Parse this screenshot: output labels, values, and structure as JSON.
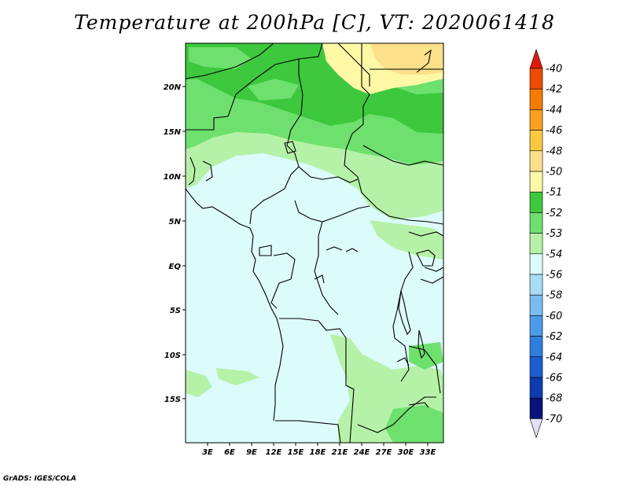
{
  "title": "Temperature at 200hPa [C], VT: 2020061418",
  "credit": "GrADS: IGES/COLA",
  "map": {
    "lon_labels": [
      "3E",
      "6E",
      "9E",
      "12E",
      "15E",
      "18E",
      "21E",
      "24E",
      "27E",
      "30E",
      "33E"
    ],
    "lat_labels": [
      "20N",
      "15N",
      "10N",
      "5N",
      "EQ",
      "5S",
      "10S",
      "15S"
    ],
    "colors": {
      "yellow": "#fff9a6",
      "tan": "#fde08a",
      "green_dark": "#3dc83d",
      "green_mid": "#6ee06e",
      "green_light": "#b5f2a8",
      "cyan_pale": "#dcfbfb"
    }
  },
  "colorbar": {
    "levels": [
      "-40",
      "-42",
      "-44",
      "-46",
      "-48",
      "-50",
      "-51",
      "-52",
      "-53",
      "-54",
      "-56",
      "-58",
      "-60",
      "-62",
      "-64",
      "-66",
      "-68",
      "-70"
    ],
    "colors": [
      "#e31a0a",
      "#f24a00",
      "#f87a00",
      "#fba020",
      "#fdc83e",
      "#fde08a",
      "#fff9a6",
      "#3dc83d",
      "#6ee06e",
      "#b5f2a8",
      "#dcfbfb",
      "#a8dcf6",
      "#78bcf0",
      "#4c9bea",
      "#2e7de0",
      "#1a5ed2",
      "#0c3cb0",
      "#07137a",
      "#e0e0f6"
    ]
  }
}
